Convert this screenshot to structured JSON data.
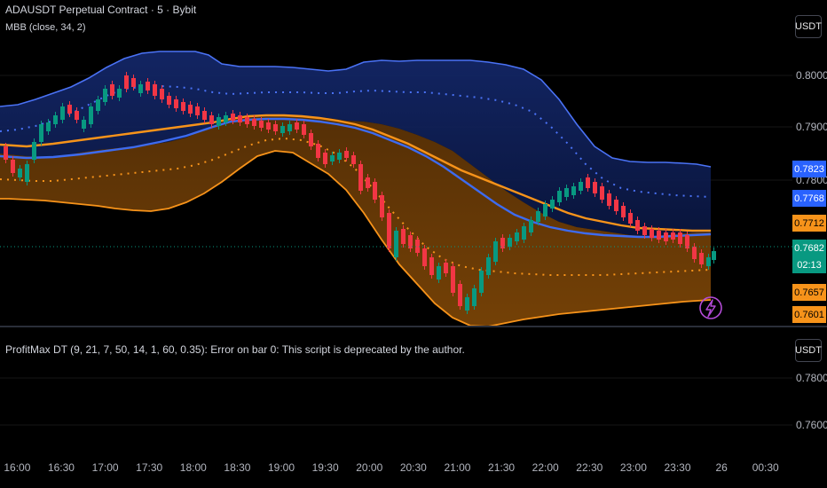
{
  "header": {
    "symbol_title": "ADAUSDT Perpetual Contract · 5 · Bybit",
    "indicator_legend": "MBB (close, 34, 2)"
  },
  "subpane": {
    "legend": "ProfitMax DT (9, 21, 7, 50, 14, 1, 60, 0.35): Error on bar 0: This script is deprecated by the author."
  },
  "currency_button_main": "USDT",
  "currency_button_sub": "USDT",
  "main_axis": {
    "ticks": [
      "0.8000",
      "0.7900",
      "0.7800"
    ]
  },
  "sub_axis": {
    "ticks": [
      "0.7800",
      "0.7600"
    ]
  },
  "time_axis": {
    "labels": [
      "16:00",
      "16:30",
      "17:00",
      "17:30",
      "18:00",
      "18:30",
      "19:00",
      "19:30",
      "20:00",
      "20:30",
      "21:00",
      "21:30",
      "22:00",
      "22:30",
      "23:00",
      "23:30",
      "26",
      "00:30"
    ]
  },
  "price_labels": [
    {
      "name": "upper-band-price",
      "value": "0.7823",
      "bg": "#2962ff",
      "fg": "#ffffff"
    },
    {
      "name": "basis-price",
      "value": "0.7768",
      "bg": "#2962ff",
      "fg": "#ffffff"
    },
    {
      "name": "upper-inner-price",
      "value": "0.7712",
      "bg": "#f7931a",
      "fg": "#000000"
    },
    {
      "name": "last-price",
      "value": "0.7682",
      "bg": "#089981",
      "fg": "#ffffff"
    },
    {
      "name": "countdown",
      "value": "02:13",
      "bg": "#089981",
      "fg": "#ffffff"
    },
    {
      "name": "lower-inner-price",
      "value": "0.7657",
      "bg": "#f7931a",
      "fg": "#000000"
    },
    {
      "name": "lower-band-price",
      "value": "0.7601",
      "bg": "#f7931a",
      "fg": "#000000"
    }
  ],
  "colors": {
    "up": "#089981",
    "down": "#f23645",
    "basis": "#3d6bf0",
    "orange": "#f7931a",
    "blue_fill": "#0d1d52",
    "orange_fill": "#6a3a04",
    "grid": "#1a1a1a"
  },
  "icons": {
    "alert": "lightning-icon"
  }
}
